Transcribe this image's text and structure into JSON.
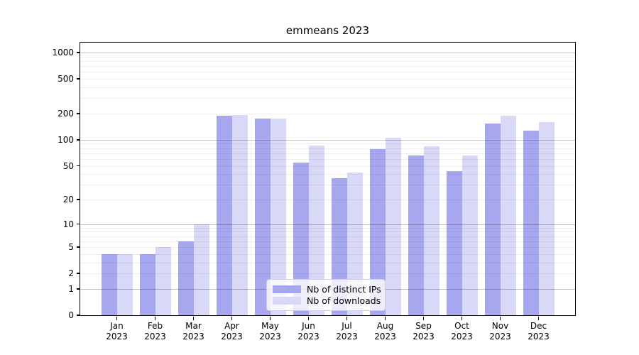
{
  "chart_data": {
    "type": "bar",
    "title": "emmeans 2023",
    "months": [
      "Jan",
      "Feb",
      "Mar",
      "Apr",
      "May",
      "Jun",
      "Jul",
      "Aug",
      "Sep",
      "Oct",
      "Nov",
      "Dec"
    ],
    "year": "2023",
    "series": [
      {
        "name": "Nb of distinct IPs",
        "color": "#a7a7f0",
        "values": [
          4,
          4,
          6,
          188,
          176,
          54,
          36,
          78,
          66,
          43,
          154,
          128
        ]
      },
      {
        "name": "Nb of downloads",
        "color": "#d8d8f7",
        "values": [
          4,
          5,
          10,
          194,
          175,
          86,
          42,
          106,
          84,
          66,
          190,
          161
        ]
      }
    ],
    "yscale": "log1p",
    "ylim": [
      0,
      1300
    ],
    "yticks": [
      0,
      1,
      2,
      5,
      10,
      20,
      50,
      100,
      200,
      500,
      1000
    ],
    "grid_major": [
      1,
      10,
      100,
      1000
    ],
    "grid_minor": [
      2,
      3,
      4,
      5,
      6,
      7,
      8,
      9,
      20,
      30,
      40,
      50,
      60,
      70,
      80,
      90,
      200,
      300,
      400,
      500,
      600,
      700,
      800,
      900
    ],
    "grid": "on",
    "legend_position": "lower center",
    "xlabel": "",
    "ylabel": ""
  }
}
